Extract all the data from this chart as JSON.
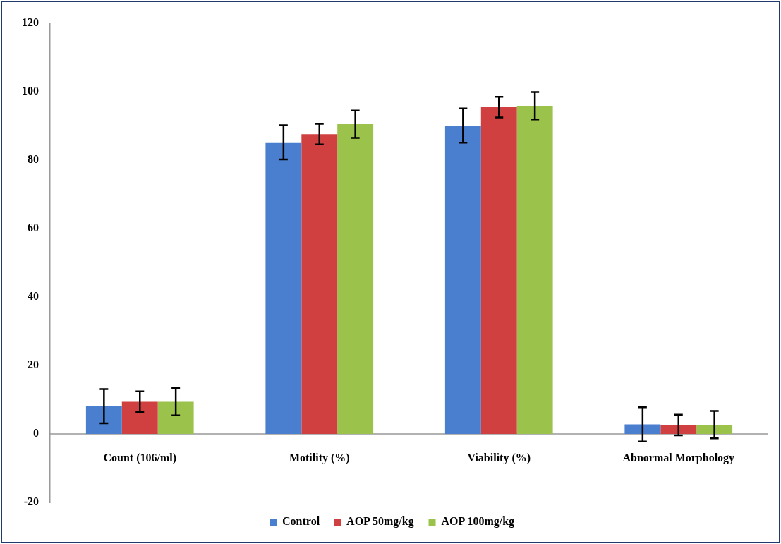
{
  "chart_data": {
    "type": "bar",
    "categories": [
      "Count (106/ml)",
      "Motility (%)",
      "Viability (%)",
      "Abnormal Morphology"
    ],
    "series": [
      {
        "name": "Control",
        "color": "#4a7fcf",
        "values": [
          8.1,
          85.2,
          90.1,
          2.8
        ],
        "errors": [
          5,
          5,
          5,
          5
        ]
      },
      {
        "name": "AOP 50mg/kg",
        "color": "#d04040",
        "values": [
          9.4,
          87.6,
          95.5,
          2.6
        ],
        "errors": [
          3,
          3,
          3,
          3
        ]
      },
      {
        "name": "AOP 100mg/kg",
        "color": "#9bc24a",
        "values": [
          9.4,
          90.5,
          95.9,
          2.7
        ],
        "errors": [
          4,
          4,
          4,
          4
        ]
      }
    ],
    "ylim": [
      -20,
      120
    ],
    "yticks": [
      -20,
      0,
      20,
      40,
      60,
      80,
      100,
      120
    ],
    "grid": false,
    "legend": "bottom"
  }
}
